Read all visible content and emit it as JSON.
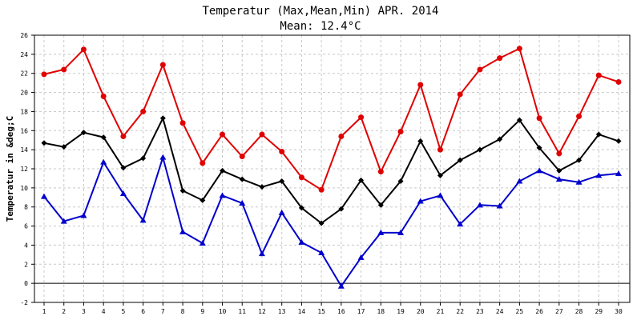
{
  "chart_data": {
    "type": "line",
    "title": "Temperatur (Max,Mean,Min) APR. 2014",
    "subtitle": "Mean: 12.4°C",
    "ylabel": "Temperatur in &deg;C",
    "xlabel": "",
    "ylim": [
      -2,
      26
    ],
    "ytick_step": 2,
    "grid": true,
    "x": [
      1,
      2,
      3,
      4,
      5,
      6,
      7,
      8,
      9,
      10,
      11,
      12,
      13,
      14,
      15,
      16,
      17,
      18,
      19,
      20,
      21,
      22,
      23,
      24,
      25,
      26,
      27,
      28,
      29,
      30
    ],
    "series": [
      {
        "key": "max",
        "color": "#e00000",
        "marker": "circle",
        "values": [
          21.9,
          22.4,
          24.5,
          19.6,
          15.4,
          18.0,
          22.9,
          16.8,
          12.6,
          15.6,
          13.3,
          15.6,
          13.8,
          11.1,
          9.8,
          15.4,
          17.4,
          11.7,
          15.9,
          20.8,
          14.0,
          19.8,
          22.4,
          23.6,
          24.6,
          17.3,
          13.6,
          17.5,
          21.8,
          21.1
        ]
      },
      {
        "key": "mean",
        "color": "#000000",
        "marker": "diamond",
        "values": [
          14.7,
          14.3,
          15.8,
          15.3,
          12.1,
          13.1,
          17.3,
          9.7,
          8.7,
          11.8,
          10.9,
          10.1,
          10.7,
          7.9,
          6.3,
          7.8,
          10.8,
          8.2,
          10.7,
          14.9,
          11.3,
          12.9,
          14.0,
          15.1,
          17.1,
          14.2,
          11.8,
          12.9,
          15.6,
          14.9
        ]
      },
      {
        "key": "min",
        "color": "#0000cc",
        "marker": "triangle",
        "values": [
          9.1,
          6.5,
          7.1,
          12.7,
          9.4,
          6.6,
          13.2,
          5.4,
          4.2,
          9.2,
          8.4,
          3.1,
          7.4,
          4.3,
          3.2,
          -0.3,
          2.7,
          5.3,
          5.3,
          8.6,
          9.2,
          6.2,
          8.2,
          8.1,
          10.7,
          11.8,
          10.9,
          10.6,
          11.3,
          11.5
        ]
      }
    ]
  }
}
